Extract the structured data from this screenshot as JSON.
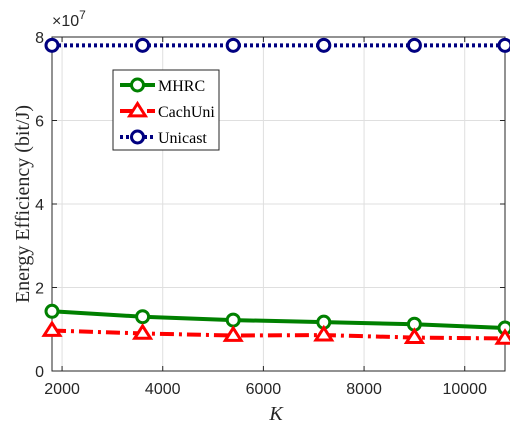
{
  "chart_data": {
    "type": "line",
    "x": [
      1800,
      3600,
      5400,
      7200,
      9000,
      10800
    ],
    "xlim": [
      1800,
      10800
    ],
    "ylim": [
      0,
      8
    ],
    "y_scale_exponent_label": "×10",
    "y_scale_exponent": "7",
    "xticks": [
      "2000",
      "4000",
      "6000",
      "8000",
      "10000"
    ],
    "xtick_values": [
      2000,
      4000,
      6000,
      8000,
      10000
    ],
    "yticks": [
      "0",
      "2",
      "4",
      "6",
      "8"
    ],
    "ytick_values": [
      0,
      2,
      4,
      6,
      8
    ],
    "xlabel": "K",
    "ylabel": "Energy Efficiency (bit/J)",
    "grid": true,
    "legend_position": "top-left",
    "series": [
      {
        "name": "MHRC",
        "values": [
          1.43,
          1.3,
          1.22,
          1.17,
          1.12,
          1.03
        ],
        "color": "#008000",
        "line_style": "solid",
        "marker": "circle"
      },
      {
        "name": "CachUni",
        "values": [
          0.97,
          0.9,
          0.85,
          0.86,
          0.8,
          0.78
        ],
        "color": "#ff0000",
        "line_style": "dash-dot",
        "marker": "triangle"
      },
      {
        "name": "Unicast",
        "values": [
          7.8,
          7.8,
          7.8,
          7.8,
          7.8,
          7.8
        ],
        "color": "#000080",
        "line_style": "dotted",
        "marker": "circle"
      }
    ]
  }
}
